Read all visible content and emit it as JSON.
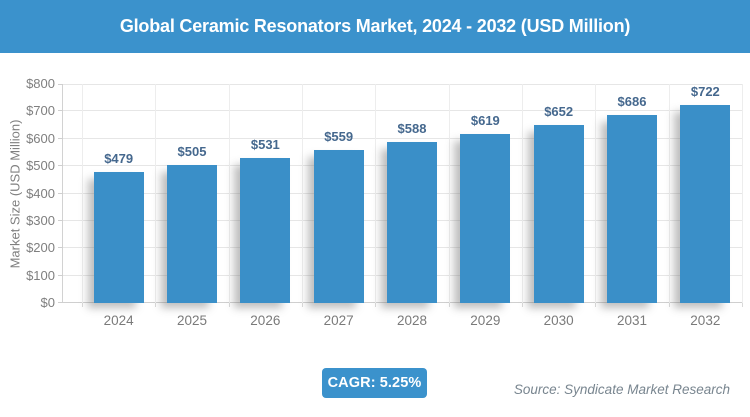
{
  "header": {
    "title": "Global Ceramic Resonators Market, 2024 - 2032 (USD Million)"
  },
  "chart_data": {
    "type": "bar",
    "title": "Global Ceramic Resonators Market, 2024 - 2032 (USD Million)",
    "categories": [
      "2024",
      "2025",
      "2026",
      "2027",
      "2028",
      "2029",
      "2030",
      "2031",
      "2032"
    ],
    "values": [
      479,
      505,
      531,
      559,
      588,
      619,
      652,
      686,
      722
    ],
    "bar_labels": [
      "$479",
      "$505",
      "$531",
      "$559",
      "$588",
      "$619",
      "$652",
      "$686",
      "$722"
    ],
    "xlabel": "",
    "ylabel": "Market Size (USD Million)",
    "ylim": [
      0,
      800
    ],
    "ytick_interval": 100,
    "ytick_labels": [
      "$0",
      "$100",
      "$200",
      "$300",
      "$400",
      "$500",
      "$600",
      "$700",
      "$800"
    ],
    "grid": true,
    "legend": "none",
    "colors": {
      "header_bg": "#3b92cc",
      "bar": "#3a8fc8",
      "badge_bg": "#3b92cc",
      "value_label": "#45688e",
      "axis_text": "#7f7f7f",
      "gridline": "#e6e6e6"
    }
  },
  "footer": {
    "cagr_badge": "CAGR: 5.25%",
    "source": "Source: Syndicate Market Research"
  }
}
